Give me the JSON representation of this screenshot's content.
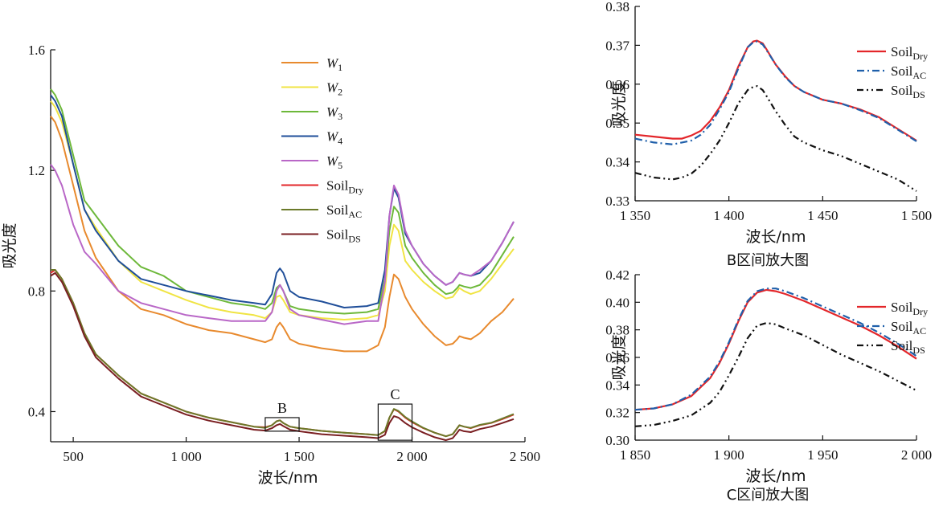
{
  "colors": {
    "W1": "#E88A2E",
    "W2": "#F0E443",
    "W3": "#6DB83A",
    "W4": "#1F4E99",
    "W5": "#B967C7",
    "SoilDry": "#E3262A",
    "SoilAC": "#6B7A2A",
    "SoilDS": "#7A1F22",
    "SoilAC_zoom": "#1F5FAA",
    "SoilDS_zoom": "#111111"
  },
  "chart_data": [
    {
      "type": "line",
      "xlabel": "波长/nm",
      "ylabel": "吸光度",
      "xlim": [
        400,
        2500
      ],
      "ylim": [
        0.3,
        1.6
      ],
      "xticks": [
        500,
        1000,
        1500,
        2000,
        2500
      ],
      "xtick_labels": [
        "500",
        "1 000",
        "1 500",
        "2 000",
        "2 500"
      ],
      "yticks": [
        0.4,
        0.8,
        1.2,
        1.6
      ],
      "ytick_labels": [
        "0.4",
        "0.8",
        "1.2",
        "1.6"
      ],
      "legend_position": "top-center",
      "annotations": [
        {
          "text": "B",
          "x": [
            1350,
            1500
          ],
          "y": [
            0.335,
            0.38
          ]
        },
        {
          "text": "C",
          "x": [
            1850,
            2000
          ],
          "y": [
            0.305,
            0.425
          ]
        }
      ],
      "x": [
        400,
        420,
        450,
        500,
        550,
        600,
        700,
        800,
        900,
        1000,
        1100,
        1200,
        1300,
        1350,
        1380,
        1400,
        1415,
        1430,
        1460,
        1500,
        1600,
        1700,
        1800,
        1850,
        1880,
        1900,
        1920,
        1940,
        1970,
        2000,
        2050,
        2100,
        2150,
        2180,
        2200,
        2210,
        2230,
        2260,
        2300,
        2350,
        2400,
        2450
      ],
      "series": [
        {
          "name": "W1",
          "key": "W1",
          "values": [
            1.38,
            1.36,
            1.3,
            1.15,
            1.0,
            0.91,
            0.8,
            0.74,
            0.72,
            0.69,
            0.67,
            0.66,
            0.64,
            0.63,
            0.64,
            0.68,
            0.695,
            0.68,
            0.64,
            0.625,
            0.61,
            0.6,
            0.6,
            0.62,
            0.68,
            0.78,
            0.855,
            0.84,
            0.78,
            0.74,
            0.69,
            0.65,
            0.62,
            0.625,
            0.64,
            0.65,
            0.645,
            0.64,
            0.66,
            0.7,
            0.73,
            0.775
          ]
        },
        {
          "name": "W2",
          "key": "W2",
          "values": [
            1.43,
            1.41,
            1.36,
            1.22,
            1.07,
            1.01,
            0.9,
            0.83,
            0.8,
            0.77,
            0.745,
            0.73,
            0.72,
            0.71,
            0.73,
            0.78,
            0.785,
            0.77,
            0.73,
            0.72,
            0.71,
            0.705,
            0.71,
            0.72,
            0.8,
            0.95,
            1.02,
            1.0,
            0.9,
            0.87,
            0.83,
            0.8,
            0.775,
            0.78,
            0.8,
            0.81,
            0.8,
            0.79,
            0.8,
            0.84,
            0.89,
            0.94
          ]
        },
        {
          "name": "W3",
          "key": "W3",
          "values": [
            1.47,
            1.45,
            1.4,
            1.25,
            1.1,
            1.05,
            0.95,
            0.88,
            0.85,
            0.8,
            0.78,
            0.76,
            0.75,
            0.74,
            0.76,
            0.81,
            0.82,
            0.8,
            0.75,
            0.74,
            0.73,
            0.725,
            0.73,
            0.74,
            0.84,
            1.0,
            1.08,
            1.06,
            0.95,
            0.91,
            0.86,
            0.82,
            0.79,
            0.795,
            0.81,
            0.82,
            0.815,
            0.81,
            0.82,
            0.86,
            0.92,
            0.98
          ]
        },
        {
          "name": "W4",
          "key": "W4",
          "values": [
            1.45,
            1.43,
            1.38,
            1.22,
            1.07,
            1.0,
            0.9,
            0.84,
            0.82,
            0.8,
            0.785,
            0.77,
            0.76,
            0.755,
            0.79,
            0.86,
            0.875,
            0.86,
            0.8,
            0.78,
            0.765,
            0.745,
            0.75,
            0.76,
            0.87,
            1.05,
            1.14,
            1.11,
            0.99,
            0.95,
            0.89,
            0.85,
            0.82,
            0.83,
            0.85,
            0.86,
            0.855,
            0.85,
            0.86,
            0.9,
            0.96,
            1.03
          ]
        },
        {
          "name": "W5",
          "key": "W5",
          "values": [
            1.22,
            1.2,
            1.15,
            1.02,
            0.93,
            0.89,
            0.8,
            0.76,
            0.74,
            0.72,
            0.71,
            0.7,
            0.7,
            0.7,
            0.73,
            0.8,
            0.82,
            0.8,
            0.74,
            0.72,
            0.705,
            0.69,
            0.7,
            0.7,
            0.83,
            1.05,
            1.15,
            1.12,
            1.0,
            0.95,
            0.89,
            0.85,
            0.82,
            0.83,
            0.85,
            0.86,
            0.855,
            0.85,
            0.87,
            0.9,
            0.96,
            1.03
          ]
        },
        {
          "name": "SoilDry",
          "key": "SoilDry",
          "values": [
            0.86,
            0.87,
            0.84,
            0.76,
            0.66,
            0.59,
            0.52,
            0.46,
            0.43,
            0.4,
            0.38,
            0.365,
            0.35,
            0.348,
            0.355,
            0.368,
            0.371,
            0.362,
            0.35,
            0.345,
            0.336,
            0.33,
            0.325,
            0.322,
            0.335,
            0.38,
            0.408,
            0.4,
            0.38,
            0.365,
            0.345,
            0.33,
            0.318,
            0.325,
            0.345,
            0.355,
            0.35,
            0.345,
            0.355,
            0.362,
            0.375,
            0.39
          ]
        },
        {
          "name": "SoilAC",
          "key": "SoilAC",
          "values": [
            0.87,
            0.87,
            0.84,
            0.76,
            0.66,
            0.59,
            0.52,
            0.46,
            0.43,
            0.4,
            0.38,
            0.365,
            0.35,
            0.346,
            0.355,
            0.368,
            0.371,
            0.362,
            0.35,
            0.345,
            0.336,
            0.33,
            0.325,
            0.322,
            0.336,
            0.38,
            0.409,
            0.402,
            0.382,
            0.367,
            0.346,
            0.33,
            0.318,
            0.325,
            0.345,
            0.355,
            0.35,
            0.346,
            0.356,
            0.363,
            0.377,
            0.392
          ]
        },
        {
          "name": "SoilDS",
          "key": "SoilDS",
          "values": [
            0.85,
            0.86,
            0.83,
            0.75,
            0.65,
            0.58,
            0.51,
            0.45,
            0.42,
            0.39,
            0.37,
            0.355,
            0.34,
            0.337,
            0.345,
            0.355,
            0.359,
            0.352,
            0.34,
            0.335,
            0.325,
            0.32,
            0.315,
            0.312,
            0.323,
            0.362,
            0.385,
            0.38,
            0.362,
            0.348,
            0.33,
            0.315,
            0.305,
            0.312,
            0.33,
            0.34,
            0.335,
            0.332,
            0.342,
            0.35,
            0.362,
            0.375
          ]
        }
      ]
    },
    {
      "type": "line",
      "caption": "B区间放大图",
      "xlabel": "波长/nm",
      "ylabel": "吸光度",
      "xlim": [
        1350,
        1500
      ],
      "ylim": [
        0.33,
        0.38
      ],
      "xticks": [
        1350,
        1400,
        1450,
        1500
      ],
      "xtick_labels": [
        "1 350",
        "1 400",
        "1 450",
        "1 500"
      ],
      "yticks": [
        0.33,
        0.34,
        0.35,
        0.36,
        0.37,
        0.38
      ],
      "ytick_labels": [
        "0.33",
        "0.34",
        "0.35",
        "0.36",
        "0.37",
        "0.38"
      ],
      "legend_position": "top-right",
      "x": [
        1350,
        1360,
        1370,
        1375,
        1380,
        1385,
        1390,
        1395,
        1400,
        1405,
        1410,
        1413,
        1415,
        1418,
        1420,
        1425,
        1430,
        1435,
        1440,
        1450,
        1460,
        1470,
        1480,
        1490,
        1500
      ],
      "series": [
        {
          "name": "Soil",
          "sub": "Dry",
          "key": "SoilDry",
          "dash": "",
          "values": [
            0.347,
            0.3465,
            0.346,
            0.346,
            0.3468,
            0.348,
            0.3505,
            0.354,
            0.3585,
            0.3645,
            0.3695,
            0.371,
            0.3712,
            0.3705,
            0.369,
            0.365,
            0.362,
            0.3595,
            0.358,
            0.356,
            0.355,
            0.3535,
            0.3515,
            0.3485,
            0.3455
          ]
        },
        {
          "name": "Soil",
          "sub": "AC",
          "key": "SoilAC_zoom",
          "dash": "9 4 2 4",
          "values": [
            0.346,
            0.345,
            0.3445,
            0.345,
            0.3455,
            0.347,
            0.3495,
            0.3535,
            0.358,
            0.364,
            0.3695,
            0.3708,
            0.371,
            0.3702,
            0.3688,
            0.365,
            0.3618,
            0.3595,
            0.358,
            0.356,
            0.355,
            0.3533,
            0.3513,
            0.3483,
            0.3453
          ]
        },
        {
          "name": "Soil",
          "sub": "DS",
          "key": "SoilDS_zoom",
          "dash": "8 4 2 4 2 4",
          "values": [
            0.3372,
            0.336,
            0.3355,
            0.336,
            0.337,
            0.339,
            0.342,
            0.3455,
            0.35,
            0.355,
            0.3585,
            0.3593,
            0.3595,
            0.3585,
            0.357,
            0.353,
            0.3495,
            0.3465,
            0.345,
            0.343,
            0.3415,
            0.3395,
            0.3375,
            0.3355,
            0.3325
          ]
        }
      ]
    },
    {
      "type": "line",
      "caption": "C区间放大图",
      "xlabel": "波长/nm",
      "ylabel": "吸光度",
      "xlim": [
        1850,
        2000
      ],
      "ylim": [
        0.3,
        0.42
      ],
      "xticks": [
        1850,
        1900,
        1950,
        2000
      ],
      "xtick_labels": [
        "1 850",
        "1 900",
        "1 950",
        "2 000"
      ],
      "yticks": [
        0.3,
        0.32,
        0.34,
        0.36,
        0.38,
        0.4,
        0.42
      ],
      "ytick_labels": [
        "0.30",
        "0.32",
        "0.34",
        "0.36",
        "0.38",
        "0.40",
        "0.42"
      ],
      "legend_position": "top-right",
      "x": [
        1850,
        1860,
        1870,
        1880,
        1890,
        1895,
        1900,
        1905,
        1910,
        1915,
        1920,
        1925,
        1930,
        1940,
        1950,
        1960,
        1970,
        1980,
        1990,
        2000
      ],
      "series": [
        {
          "name": "Soil",
          "sub": "Dry",
          "key": "SoilDry",
          "dash": "",
          "values": [
            0.322,
            0.323,
            0.326,
            0.332,
            0.345,
            0.356,
            0.37,
            0.386,
            0.4,
            0.407,
            0.409,
            0.408,
            0.406,
            0.401,
            0.395,
            0.389,
            0.383,
            0.376,
            0.368,
            0.359
          ]
        },
        {
          "name": "Soil",
          "sub": "AC",
          "key": "SoilAC_zoom",
          "dash": "9 4 2 4",
          "values": [
            0.322,
            0.323,
            0.326,
            0.333,
            0.346,
            0.357,
            0.371,
            0.387,
            0.401,
            0.408,
            0.41,
            0.41,
            0.408,
            0.403,
            0.397,
            0.391,
            0.385,
            0.378,
            0.37,
            0.361
          ]
        },
        {
          "name": "Soil",
          "sub": "DS",
          "key": "SoilDS_zoom",
          "dash": "8 4 2 4 2 4",
          "values": [
            0.31,
            0.311,
            0.314,
            0.318,
            0.327,
            0.335,
            0.347,
            0.36,
            0.374,
            0.383,
            0.385,
            0.384,
            0.381,
            0.376,
            0.369,
            0.362,
            0.356,
            0.35,
            0.343,
            0.336
          ]
        }
      ]
    }
  ]
}
